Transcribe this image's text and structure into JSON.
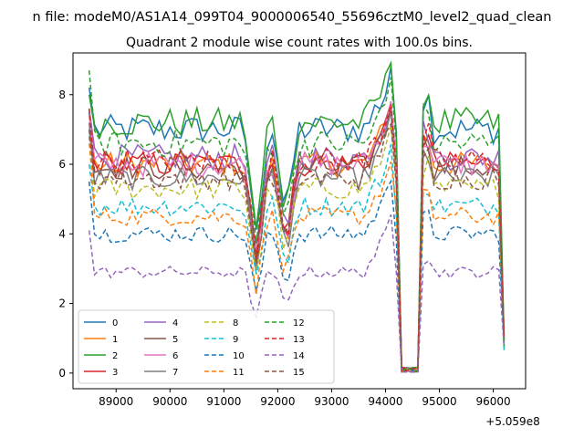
{
  "chart_data": {
    "type": "line",
    "suptitle": "n file: modeM0/AS1A14_099T04_9000006540_55696cztM0_level2_quad_clean",
    "title": "Quadrant 2 module wise count rates with 100.0s bins.",
    "xlabel": "",
    "ylabel": "",
    "x_offset_label": "+5.059e8",
    "xlim": [
      88200,
      96600
    ],
    "ylim": [
      -0.45,
      9.2
    ],
    "x_ticks": [
      89000,
      90000,
      91000,
      92000,
      93000,
      94000,
      95000,
      96000
    ],
    "y_ticks": [
      0,
      2,
      4,
      6,
      8
    ],
    "x_start": 88500,
    "x_end": 96200,
    "x_step": 100,
    "dips": [
      [
        91600,
        0.55
      ],
      [
        92150,
        0.62
      ]
    ],
    "gap": [
      94250,
      94600
    ],
    "peaks": [
      [
        94100,
        1.08
      ],
      [
        94750,
        1.12
      ]
    ],
    "grid": false,
    "legend": {
      "location": "lower-left",
      "columns": 4
    },
    "series": [
      {
        "name": "0",
        "level": 7.0,
        "style": "solid",
        "color": "#1f77b4",
        "start": 8.2
      },
      {
        "name": "1",
        "level": 6.0,
        "style": "solid",
        "color": "#ff7f0e",
        "start": 7.0
      },
      {
        "name": "2",
        "level": 7.2,
        "style": "solid",
        "color": "#2ca02c",
        "start": 8.0
      },
      {
        "name": "3",
        "level": 6.0,
        "style": "solid",
        "color": "#d62728",
        "start": 7.5
      },
      {
        "name": "4",
        "level": 6.2,
        "style": "solid",
        "color": "#9467bd",
        "start": 7.6
      },
      {
        "name": "5",
        "level": 5.9,
        "style": "solid",
        "color": "#8c564b",
        "start": 7.0
      },
      {
        "name": "6",
        "level": 6.0,
        "style": "solid",
        "color": "#e377c2",
        "start": 7.4
      },
      {
        "name": "7",
        "level": 5.6,
        "style": "solid",
        "color": "#7f7f7f",
        "start": 7.2
      },
      {
        "name": "8",
        "level": 5.3,
        "style": "dashed",
        "color": "#bcbd22",
        "start": 6.6
      },
      {
        "name": "9",
        "level": 4.8,
        "style": "dashed",
        "color": "#17becf",
        "start": 6.0
      },
      {
        "name": "10",
        "level": 4.0,
        "style": "dashed",
        "color": "#1f77b4",
        "start": 5.5
      },
      {
        "name": "11",
        "level": 4.5,
        "style": "dashed",
        "color": "#ff7f0e",
        "start": 6.8
      },
      {
        "name": "12",
        "level": 6.6,
        "style": "dashed",
        "color": "#2ca02c",
        "start": 8.7
      },
      {
        "name": "13",
        "level": 6.1,
        "style": "dashed",
        "color": "#d62728",
        "start": 7.6
      },
      {
        "name": "14",
        "level": 2.9,
        "style": "dashed",
        "color": "#9467bd",
        "start": 4.1
      },
      {
        "name": "15",
        "level": 5.6,
        "style": "dashed",
        "color": "#8c564b",
        "start": 7.0
      }
    ]
  }
}
